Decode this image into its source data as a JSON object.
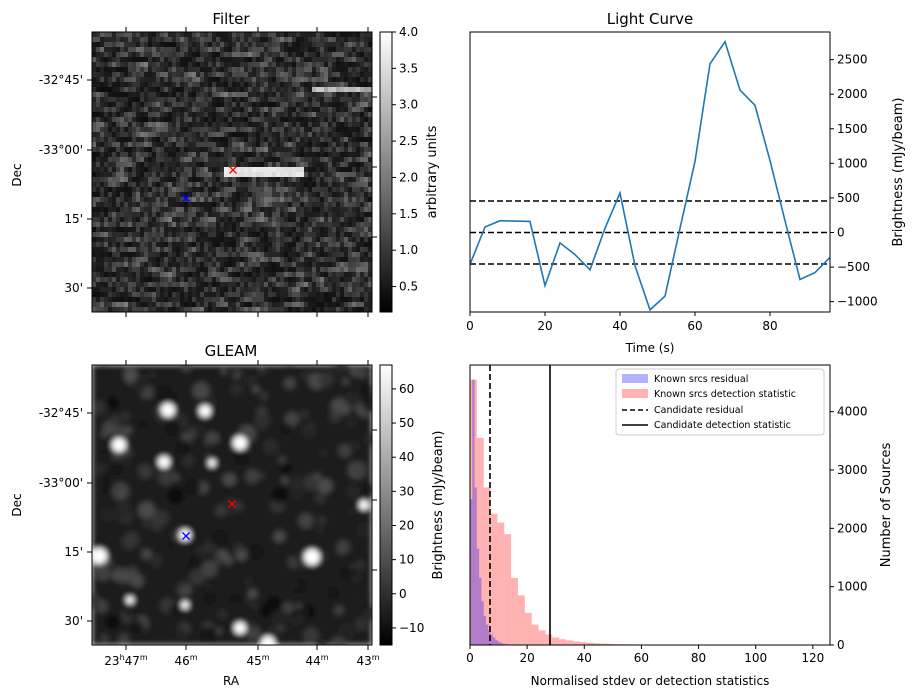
{
  "chart_data": [
    {
      "type": "heatmap",
      "title": "Filter",
      "ylabel": "Dec",
      "xlabel": "",
      "ytick_labels": [
        "-32°45'",
        "-33°00'",
        "15'",
        "30'"
      ],
      "colorbar": {
        "label": "arbitrary units",
        "range": [
          0.15,
          4.0
        ],
        "ticks": [
          "0.5",
          "1.0",
          "1.5",
          "2.0",
          "2.5",
          "3.0",
          "3.5",
          "4.0"
        ],
        "colormap": "gray"
      },
      "markers": [
        {
          "symbol": "x",
          "color": "#ff0000",
          "label": "candidate"
        },
        {
          "symbol": "x",
          "color": "#0000ff",
          "label": "known source"
        }
      ]
    },
    {
      "type": "line",
      "title": "Light Curve",
      "xlabel": "Time (s)",
      "ylabel": "Brightness (mJy/beam)",
      "xlim": [
        0,
        96
      ],
      "ylim": [
        -1150,
        2900
      ],
      "xticks": [
        0,
        20,
        40,
        60,
        80
      ],
      "yticks": [
        -1000,
        -500,
        0,
        500,
        1000,
        1500,
        2000,
        2500
      ],
      "series": [
        {
          "color": "#1f77b4",
          "x": [
            0,
            4,
            8,
            12,
            16,
            20,
            24,
            28,
            32,
            36,
            40,
            44,
            48,
            52,
            56,
            60,
            64,
            68,
            72,
            76,
            80,
            84,
            88,
            92,
            96
          ],
          "y": [
            -460,
            80,
            170,
            165,
            160,
            -770,
            -150,
            -320,
            -540,
            60,
            570,
            -480,
            -1120,
            -920,
            60,
            1030,
            2440,
            2760,
            2060,
            1840,
            1040,
            170,
            -680,
            -580,
            -360
          ]
        }
      ],
      "hlines": [
        {
          "y": 455,
          "style": "dashed",
          "color": "#000000"
        },
        {
          "y": 0,
          "style": "dashed",
          "color": "#000000"
        },
        {
          "y": -455,
          "style": "dashed",
          "color": "#000000"
        }
      ]
    },
    {
      "type": "heatmap",
      "title": "GLEAM",
      "xlabel": "RA",
      "ylabel": "Dec",
      "ytick_labels": [
        "-32°45'",
        "-33°00'",
        "15'",
        "30'"
      ],
      "xtick_labels": [
        {
          "h": "23",
          "m": "47"
        },
        {
          "h": "",
          "m": "46"
        },
        {
          "h": "",
          "m": "45"
        },
        {
          "h": "",
          "m": "44"
        },
        {
          "h": "",
          "m": "43"
        }
      ],
      "colorbar": {
        "label": "Brightness (mJy/beam)",
        "range": [
          -15,
          67
        ],
        "ticks": [
          "−10",
          "0",
          "10",
          "20",
          "30",
          "40",
          "50",
          "60"
        ],
        "colormap": "gray"
      },
      "markers": [
        {
          "symbol": "x",
          "color": "#ff0000",
          "label": "candidate"
        },
        {
          "symbol": "x",
          "color": "#0000ff",
          "label": "known source"
        }
      ]
    },
    {
      "type": "bar",
      "subtype": "histogram",
      "xlabel": "Normalised stdev or detection statistics",
      "ylabel": "Number of Sources",
      "xlim": [
        0,
        126
      ],
      "ylim": [
        0,
        4800
      ],
      "xticks": [
        0,
        20,
        40,
        60,
        80,
        100,
        120
      ],
      "yticks": [
        0,
        1000,
        2000,
        3000,
        4000
      ],
      "bin_width": 2.4,
      "series": [
        {
          "name": "Known srcs residual",
          "color": "#0000ff",
          "alpha": 0.3,
          "bin_start": 0,
          "bin_width": 0.8,
          "values": [
            2500,
            4550,
            2700,
            1650,
            1150,
            750,
            500,
            350,
            250,
            180,
            130,
            90,
            60,
            40,
            25,
            15,
            10,
            5
          ]
        },
        {
          "name": "Known srcs detection statistic",
          "color": "#ff0000",
          "alpha": 0.3,
          "bin_start": 0,
          "bin_width": 2.4,
          "values": [
            4550,
            3550,
            2700,
            2250,
            2100,
            1900,
            1150,
            850,
            550,
            350,
            250,
            180,
            130,
            100,
            80,
            60,
            50,
            40,
            30,
            25,
            20,
            15,
            12,
            10,
            8,
            8,
            6,
            6,
            5,
            5,
            4,
            4,
            3,
            3,
            3,
            2,
            2,
            2,
            2,
            2,
            1,
            1,
            1,
            1,
            1,
            1,
            1,
            1,
            1,
            1
          ]
        }
      ],
      "vlines": [
        {
          "name": "Candidate residual",
          "x": 7.0,
          "style": "dashed",
          "color": "#000000"
        },
        {
          "name": "Candidate detection statistic",
          "x": 28.0,
          "style": "solid",
          "color": "#000000"
        }
      ],
      "legend": "top-right"
    }
  ]
}
